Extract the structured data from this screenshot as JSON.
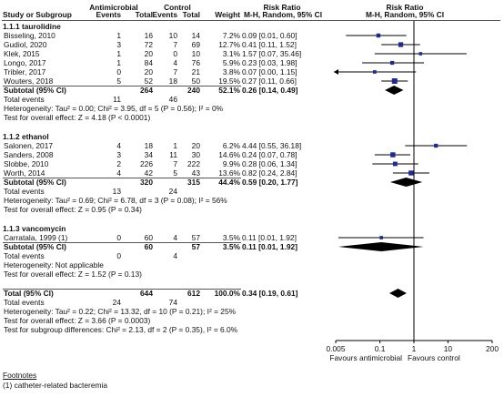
{
  "header": {
    "study": "Study or Subgroup",
    "group1": "Antimicrobial",
    "group2": "Control",
    "events": "Events",
    "total": "Total",
    "weight": "Weight",
    "rr1": "Risk Ratio",
    "rr2": "Risk Ratio",
    "method1": "M-H, Random, 95% CI",
    "method2": "M-H, Random, 95% CI"
  },
  "chart_data": {
    "type": "forest",
    "x_scale": "log",
    "ticks": [
      "0.005",
      "0.1",
      "1",
      "10",
      "200"
    ],
    "tick_values": [
      0.005,
      0.1,
      1,
      10,
      200
    ],
    "favours_left": "Favours antimicrobial",
    "favours_right": "Favours control",
    "subgroups": [
      {
        "title": "1.1.1 taurolidine",
        "studies": [
          {
            "name": "Bisseling, 2010",
            "e1": "1",
            "t1": "16",
            "e2": "10",
            "t2": "14",
            "w": "7.2%",
            "ci": "0.09 [0.01, 0.60]",
            "rr": 0.09,
            "lo": 0.01,
            "hi": 0.6
          },
          {
            "name": "Gudiol, 2020",
            "e1": "3",
            "t1": "72",
            "e2": "7",
            "t2": "69",
            "w": "12.7%",
            "ci": "0.41 [0.11, 1.52]",
            "rr": 0.41,
            "lo": 0.11,
            "hi": 1.52
          },
          {
            "name": "Klek, 2015",
            "e1": "1",
            "t1": "20",
            "e2": "0",
            "t2": "10",
            "w": "3.1%",
            "ci": "1.57 [0.07, 35.46]",
            "rr": 1.57,
            "lo": 0.07,
            "hi": 35.46
          },
          {
            "name": "Longo, 2017",
            "e1": "1",
            "t1": "84",
            "e2": "4",
            "t2": "76",
            "w": "5.9%",
            "ci": "0.23 [0.03, 1.98]",
            "rr": 0.23,
            "lo": 0.03,
            "hi": 1.98
          },
          {
            "name": "Tribler, 2017",
            "e1": "0",
            "t1": "20",
            "e2": "7",
            "t2": "21",
            "w": "3.8%",
            "ci": "0.07 [0.00, 1.15]",
            "rr": 0.07,
            "lo": 0.003,
            "hi": 1.15,
            "arrow_left": true
          },
          {
            "name": "Wouters, 2018",
            "e1": "5",
            "t1": "52",
            "e2": "18",
            "t2": "50",
            "w": "19.5%",
            "ci": "0.27 [0.11, 0.66]",
            "rr": 0.27,
            "lo": 0.11,
            "hi": 0.66
          }
        ],
        "subtotal": {
          "label": "Subtotal (95% CI)",
          "t1": "264",
          "t2": "240",
          "w": "52.1%",
          "ci": "0.26 [0.14, 0.49]",
          "rr": 0.26,
          "lo": 0.14,
          "hi": 0.49
        },
        "total_events": {
          "label": "Total events",
          "e1": "11",
          "e2": "46"
        },
        "heterogeneity": "Heterogeneity: Tau² = 0.00; Chi² = 3.95, df = 5 (P = 0.56); I² = 0%",
        "overall": "Test for overall effect: Z = 4.18 (P < 0.0001)"
      },
      {
        "title": "1.1.2 ethanol",
        "studies": [
          {
            "name": "Salonen, 2017",
            "e1": "4",
            "t1": "18",
            "e2": "1",
            "t2": "20",
            "w": "6.2%",
            "ci": "4.44 [0.55, 36.18]",
            "rr": 4.44,
            "lo": 0.55,
            "hi": 36.18
          },
          {
            "name": "Sanders, 2008",
            "e1": "3",
            "t1": "34",
            "e2": "11",
            "t2": "30",
            "w": "14.6%",
            "ci": "0.24 [0.07, 0.78]",
            "rr": 0.24,
            "lo": 0.07,
            "hi": 0.78
          },
          {
            "name": "Slobbe, 2010",
            "e1": "2",
            "t1": "226",
            "e2": "7",
            "t2": "222",
            "w": "9.9%",
            "ci": "0.28 [0.06, 1.34]",
            "rr": 0.28,
            "lo": 0.06,
            "hi": 1.34
          },
          {
            "name": "Worth, 2014",
            "e1": "4",
            "t1": "42",
            "e2": "5",
            "t2": "43",
            "w": "13.6%",
            "ci": "0.82 [0.24, 2.84]",
            "rr": 0.82,
            "lo": 0.24,
            "hi": 2.84
          }
        ],
        "subtotal": {
          "label": "Subtotal (95% CI)",
          "t1": "320",
          "t2": "315",
          "w": "44.4%",
          "ci": "0.59 [0.20, 1.77]",
          "rr": 0.59,
          "lo": 0.2,
          "hi": 1.77
        },
        "total_events": {
          "label": "Total events",
          "e1": "13",
          "e2": "24"
        },
        "heterogeneity": "Heterogeneity: Tau² = 0.69; Chi² = 6.78, df = 3 (P = 0.08); I² = 56%",
        "overall": "Test for overall effect: Z = 0.95 (P = 0.34)"
      },
      {
        "title": "1.1.3 vancomycin",
        "studies": [
          {
            "name": "Carratala, 1999 (1)",
            "e1": "0",
            "t1": "60",
            "e2": "4",
            "t2": "57",
            "w": "3.5%",
            "ci": "0.11 [0.01, 1.92]",
            "rr": 0.11,
            "lo": 0.006,
            "hi": 1.92
          }
        ],
        "subtotal": {
          "label": "Subtotal (95% CI)",
          "t1": "60",
          "t2": "57",
          "w": "3.5%",
          "ci": "0.11 [0.01, 1.92]",
          "rr": 0.11,
          "lo": 0.006,
          "hi": 1.92
        },
        "total_events": {
          "label": "Total events",
          "e1": "0",
          "e2": "4"
        },
        "heterogeneity": "Heterogeneity: Not applicable",
        "overall": "Test for overall effect: Z = 1.52 (P = 0.13)"
      }
    ],
    "total": {
      "label": "Total (95% CI)",
      "t1": "644",
      "t2": "612",
      "w": "100.0%",
      "ci": "0.34 [0.19, 0.61]",
      "rr": 0.34,
      "lo": 0.19,
      "hi": 0.61
    },
    "total_events": {
      "label": "Total events",
      "e1": "24",
      "e2": "74"
    },
    "heterogeneity": "Heterogeneity: Tau² = 0.22; Chi² = 13.32, df = 10 (P = 0.21); I² = 25%",
    "overall": "Test for overall effect: Z = 3.66 (P = 0.0003)",
    "subgroup_diff": "Test for subgroup differences: Chi² = 2.13, df = 2 (P = 0.35), I² = 6.0%"
  },
  "footnotes": {
    "title": "Footnotes",
    "items": [
      "(1) catheter-related bacteremia"
    ]
  }
}
